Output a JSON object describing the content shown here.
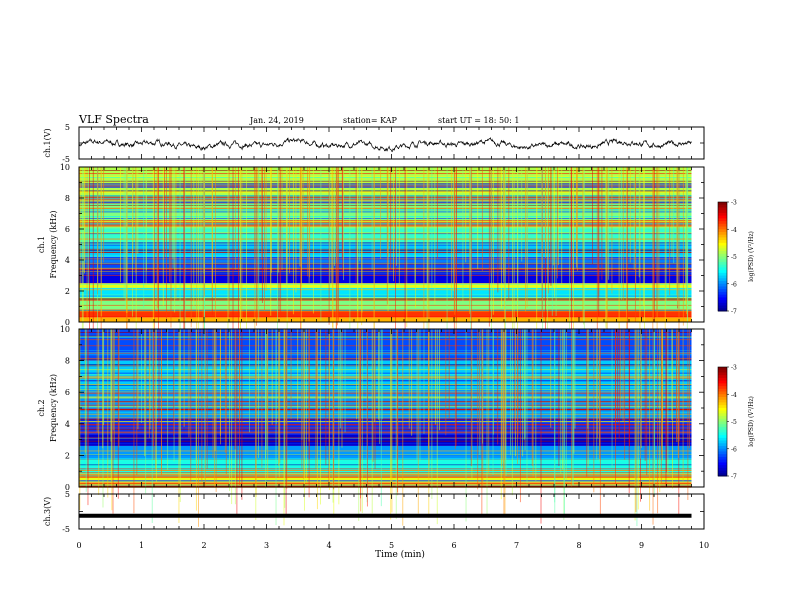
{
  "header": {
    "title": "VLF Spectra",
    "date": "Jan. 24, 2019",
    "station": "station= KAP",
    "start": "start  UT =   18: 50: 1"
  },
  "chart_data": [
    {
      "type": "line",
      "panel": "ch1-waveform",
      "ylabel": "ch.1(V)",
      "ylim": [
        -5,
        5
      ],
      "yticks": [
        "5",
        "-5"
      ],
      "xlim": [
        0,
        10
      ],
      "note": "noisy waveform around about -0.5 V, amplitude approx +/-1.5 V, spanning 0 to 9.8 min"
    },
    {
      "type": "heatmap",
      "panel": "ch1-spectrogram",
      "ylabel": "ch.1\nFrequency  (kHz)",
      "ylim": [
        0,
        10
      ],
      "yticks": [
        "0",
        "2",
        "4",
        "6",
        "8",
        "10"
      ],
      "xlim": [
        0,
        10
      ],
      "colorbar": {
        "label": "log(PSD) (V²/Hz)",
        "ticks": [
          "-3",
          "-4",
          "-5",
          "-6",
          "-7"
        ],
        "range": [
          -7,
          -3
        ]
      },
      "bands_khz": [
        {
          "f0": 0.0,
          "f1": 0.3,
          "level": -4.2
        },
        {
          "f0": 0.3,
          "f1": 0.8,
          "level": -3.7
        },
        {
          "f0": 0.8,
          "f1": 1.6,
          "level": -5.0
        },
        {
          "f0": 1.6,
          "f1": 2.2,
          "level": -5.6
        },
        {
          "f0": 2.2,
          "f1": 2.5,
          "level": -4.6
        },
        {
          "f0": 2.5,
          "f1": 3.4,
          "level": -6.6
        },
        {
          "f0": 3.4,
          "f1": 4.2,
          "level": -6.2
        },
        {
          "f0": 4.2,
          "f1": 5.0,
          "level": -5.7
        },
        {
          "f0": 5.0,
          "f1": 6.0,
          "level": -5.3
        },
        {
          "f0": 6.0,
          "f1": 8.0,
          "level": -5.0
        },
        {
          "f0": 8.0,
          "f1": 10.0,
          "level": -4.8
        }
      ]
    },
    {
      "type": "heatmap",
      "panel": "ch2-spectrogram",
      "ylabel": "ch.2\nFrequency  (kHz)",
      "ylim": [
        0,
        10
      ],
      "yticks": [
        "0",
        "2",
        "4",
        "6",
        "8",
        "10"
      ],
      "xlim": [
        0,
        10
      ],
      "colorbar": {
        "label": "log(PSD) (V²/Hz)",
        "ticks": [
          "-3",
          "-4",
          "-5",
          "-6",
          "-7"
        ],
        "range": [
          -7,
          -3
        ]
      },
      "bands_khz": [
        {
          "f0": 0.0,
          "f1": 0.3,
          "level": -4.0
        },
        {
          "f0": 0.3,
          "f1": 0.8,
          "level": -4.6
        },
        {
          "f0": 0.8,
          "f1": 1.8,
          "level": -5.4
        },
        {
          "f0": 1.8,
          "f1": 2.6,
          "level": -5.9
        },
        {
          "f0": 2.6,
          "f1": 3.3,
          "level": -6.7
        },
        {
          "f0": 3.3,
          "f1": 4.4,
          "level": -6.3
        },
        {
          "f0": 4.4,
          "f1": 6.0,
          "level": -5.9
        },
        {
          "f0": 6.0,
          "f1": 8.0,
          "level": -5.7
        },
        {
          "f0": 8.0,
          "f1": 10.0,
          "level": -6.2
        }
      ]
    },
    {
      "type": "line",
      "panel": "ch3-waveform",
      "ylabel": "ch.3(V)",
      "ylim": [
        -5,
        5
      ],
      "yticks": [
        "5",
        "-5"
      ],
      "xlim": [
        0,
        10
      ],
      "x": [
        0,
        9.8
      ],
      "y": [
        -1.2,
        -1.2
      ]
    }
  ],
  "xaxis": {
    "label": "Time  (min)",
    "ticks": [
      "0",
      "1",
      "2",
      "3",
      "4",
      "5",
      "6",
      "7",
      "8",
      "9",
      "10"
    ]
  }
}
